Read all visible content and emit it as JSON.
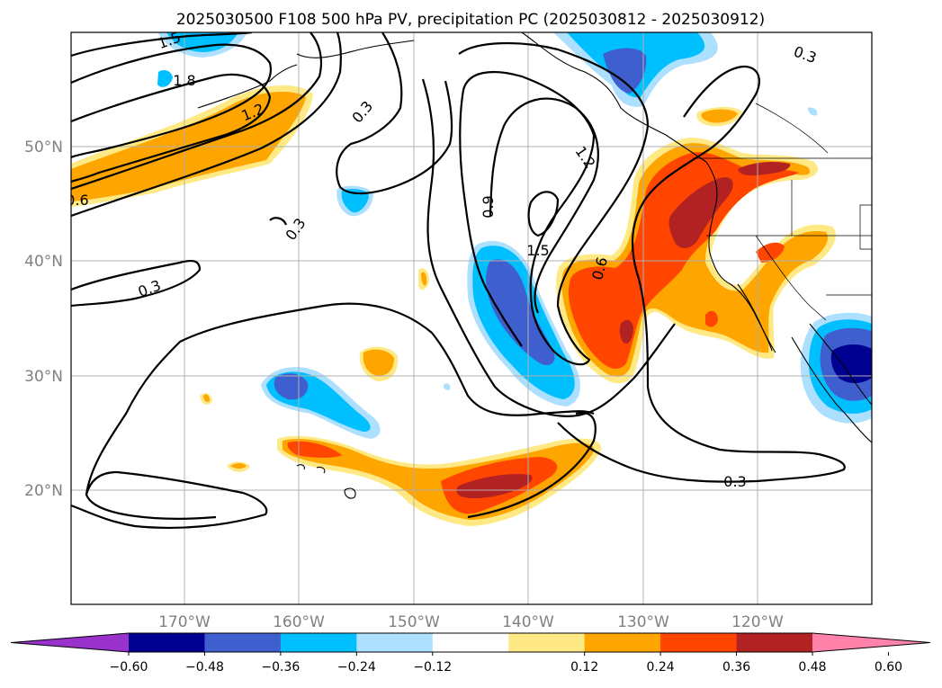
{
  "title": "2025030500 F108 500 hPa PV, precipitation PC (2025030812 - 2025030912)",
  "x_ticks": [
    "170°W",
    "160°W",
    "150°W",
    "140°W",
    "130°W",
    "120°W"
  ],
  "y_ticks": [
    "50°N",
    "40°N",
    "30°N",
    "20°N"
  ],
  "contour_labels": [
    "1.5",
    "1.8",
    "1.2",
    "0.6",
    "0.3",
    "0.3",
    "0.3",
    "0.9",
    "1.2",
    "1.5",
    "0.6",
    "0.3"
  ],
  "colorbar": {
    "ticks": [
      "−0.60",
      "−0.48",
      "−0.36",
      "−0.24",
      "−0.12",
      "0.12",
      "0.24",
      "0.36",
      "0.48",
      "0.60"
    ],
    "colors": [
      "#9932cc",
      "#000091",
      "#3f5fcf",
      "#00bfff",
      "#addfff",
      "#ffffff",
      "#ffe985",
      "#ffa500",
      "#ff4500",
      "#b22222",
      "#ff82aa"
    ]
  },
  "colors": {
    "shading_positive": [
      "#ffe985",
      "#ffa500",
      "#ff4500",
      "#b22222"
    ],
    "shading_negative": [
      "#addfff",
      "#00bfff",
      "#3f5fcf",
      "#000091"
    ],
    "contour": "#000000",
    "grid": "#b0b0b0"
  }
}
